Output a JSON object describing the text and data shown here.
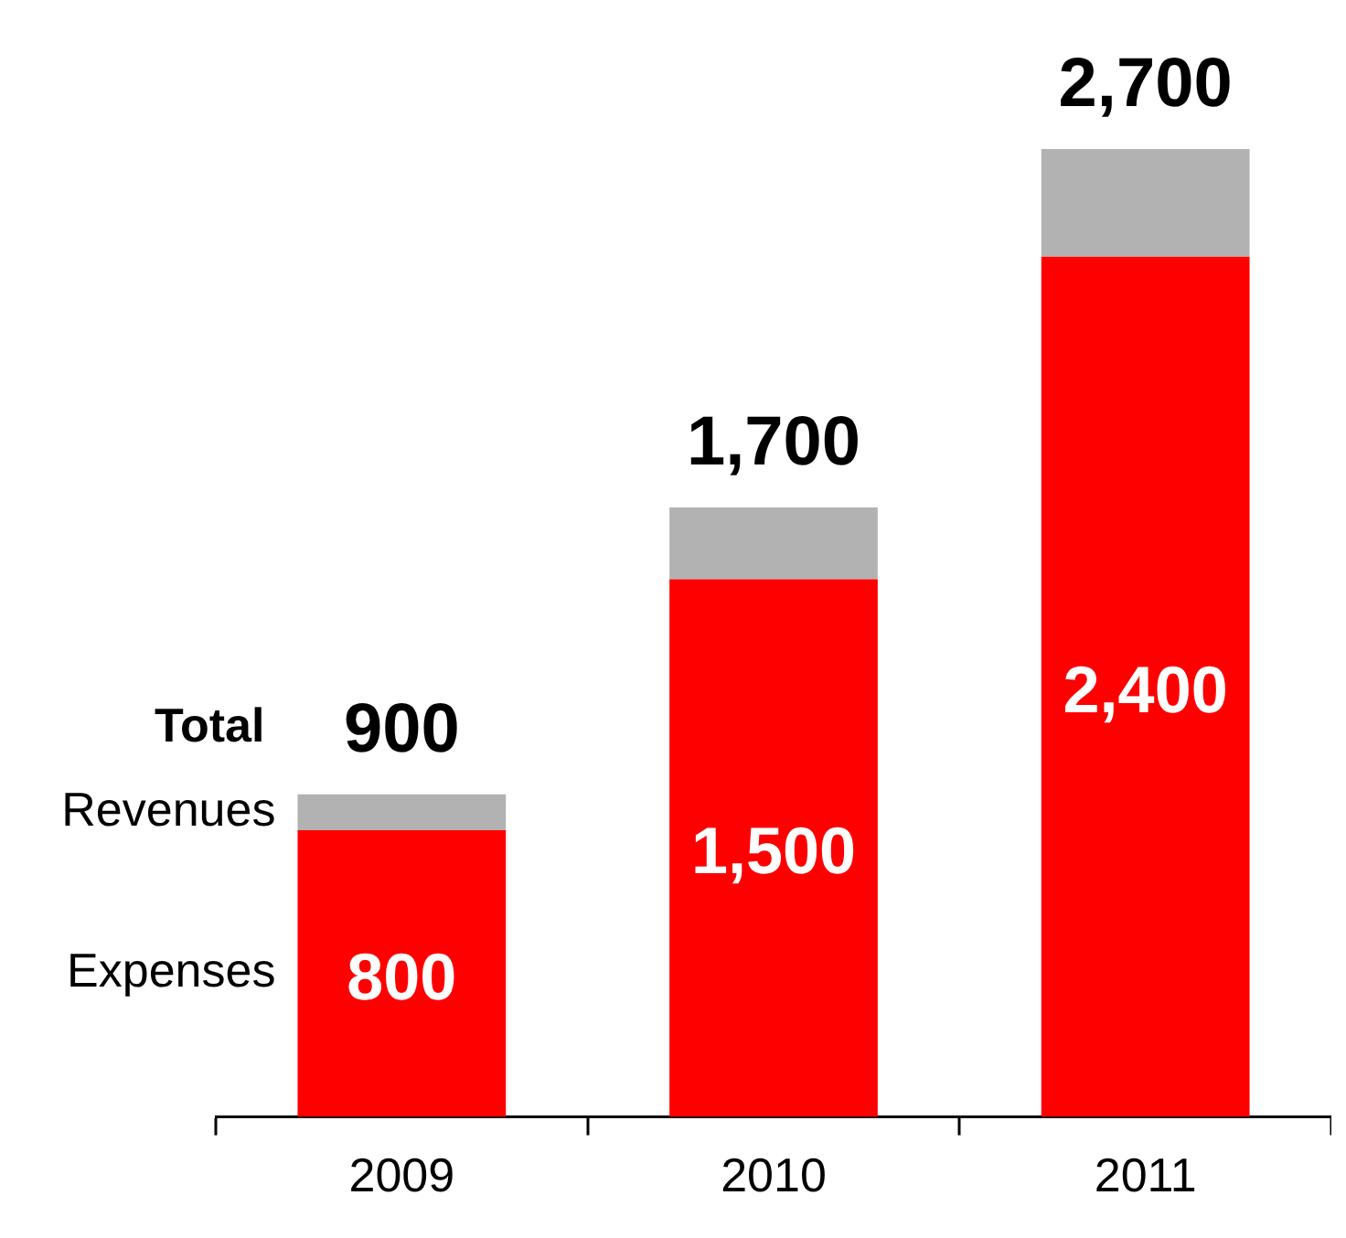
{
  "chart_data": {
    "type": "bar",
    "stacked": true,
    "categories": [
      "2009",
      "2010",
      "2011"
    ],
    "series": [
      {
        "name": "Expenses",
        "color": "#ff0000",
        "values": [
          800,
          1500,
          2400
        ],
        "value_labels": [
          "800",
          "1,500",
          "2,400"
        ]
      },
      {
        "name": "Revenues",
        "color": "#b2b2b2",
        "values": [
          100,
          200,
          300
        ]
      }
    ],
    "totals": [
      "900",
      "1,700",
      "2,700"
    ],
    "annotations": [
      "Total"
    ],
    "grid": false,
    "legend": false
  }
}
